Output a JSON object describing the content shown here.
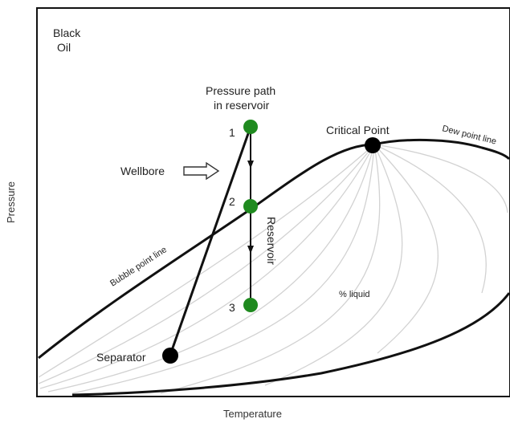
{
  "diagram": {
    "corner_label_line1": "Black",
    "corner_label_line2": "Oil",
    "pressure_path_line1": "Pressure path",
    "pressure_path_line2": "in reservoir",
    "critical_point": "Critical Point",
    "dew_point_line": "Dew point line",
    "bubble_point_line": "Bubble point line",
    "wellbore": "Wellbore",
    "reservoir": "Reservoir",
    "percent_liquid": "% liquid",
    "separator": "Separator",
    "points": [
      "1",
      "2",
      "3"
    ],
    "x_axis_label": "Temperature",
    "y_axis_label": "Pressure"
  },
  "colors": {
    "curve": "#111111",
    "quality_lines": "#d2d2d2",
    "green_point": "#1f8a1f",
    "black_point": "#000000"
  }
}
